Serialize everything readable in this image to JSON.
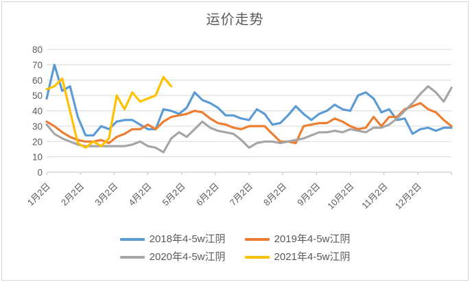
{
  "chart_data": {
    "type": "line",
    "title": "运价走势",
    "ylim": [
      0,
      80
    ],
    "y_ticks": [
      0,
      10,
      20,
      30,
      40,
      50,
      60,
      70,
      80
    ],
    "x_labels": [
      "1月2日",
      "2月2日",
      "3月2日",
      "4月2日",
      "5月2日",
      "6月2日",
      "7月2日",
      "8月2日",
      "9月2日",
      "10月2日",
      "11月2日",
      "12月2日"
    ],
    "x_note": "weekly samples from Jan 2 to Dec 31; 2021 series ends in early May",
    "grid": "horizontal",
    "legend_position": "bottom",
    "colors": {
      "grid": "#D9D9D9",
      "axis": "#BFBFBF",
      "tick_text": "#595959",
      "title_text": "#595959"
    },
    "series": [
      {
        "name": "2018年4-5w江阴",
        "color": "#5B9BD5",
        "values": [
          48,
          70,
          53,
          56,
          36,
          24,
          24,
          30,
          28,
          33,
          34,
          34,
          31,
          28,
          28,
          41,
          40,
          38,
          42,
          52,
          47,
          45,
          42,
          37,
          37,
          35,
          34,
          41,
          38,
          31,
          32,
          37,
          43,
          38,
          34,
          38,
          40,
          44,
          41,
          40,
          50,
          52,
          48,
          39,
          41,
          34,
          35,
          25,
          28,
          29,
          27,
          29,
          29
        ]
      },
      {
        "name": "2019年4-5w江阴",
        "color": "#ED7D31",
        "values": [
          33,
          30,
          26,
          23,
          21,
          20,
          20,
          21,
          19,
          23,
          25,
          28,
          28,
          31,
          28,
          33,
          36,
          37,
          38,
          40,
          39,
          35,
          32,
          31,
          29,
          28,
          30,
          30,
          30,
          25,
          20,
          20,
          19,
          30,
          31,
          32,
          32,
          35,
          33,
          30,
          28,
          29,
          36,
          30,
          36,
          36,
          41,
          43,
          45,
          41,
          39,
          34,
          30
        ]
      },
      {
        "name": "2020年4-5w江阴",
        "color": "#A5A5A5",
        "values": [
          31,
          25,
          22,
          20,
          18,
          17,
          17,
          17,
          17,
          17,
          17,
          18,
          20,
          17,
          16,
          13,
          22,
          26,
          23,
          28,
          33,
          29,
          27,
          26,
          25,
          21,
          16,
          19,
          20,
          20,
          19,
          20,
          21,
          22,
          24,
          26,
          26,
          27,
          26,
          28,
          27,
          26,
          29,
          29,
          31,
          35,
          40,
          45,
          51,
          56,
          52,
          46,
          55
        ]
      },
      {
        "name": "2021年4-5w江阴",
        "color": "#FFC000",
        "values": [
          54,
          56,
          61,
          40,
          19,
          16,
          20,
          17,
          22,
          50,
          41,
          52,
          46,
          48,
          50,
          62,
          56,
          null,
          null,
          null,
          null,
          null,
          null,
          null,
          null,
          null,
          null,
          null,
          null,
          null,
          null,
          null,
          null,
          null,
          null,
          null,
          null,
          null,
          null,
          null,
          null,
          null,
          null,
          null,
          null,
          null,
          null,
          null,
          null,
          null,
          null,
          null,
          null
        ]
      }
    ]
  }
}
